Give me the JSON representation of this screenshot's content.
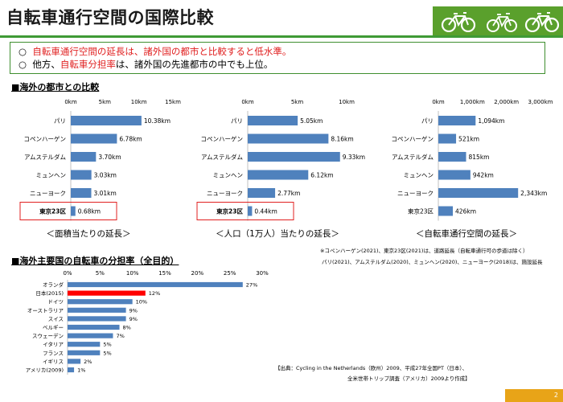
{
  "header": {
    "title": "自転車通行空間の国際比較",
    "page_number": "2"
  },
  "summary": {
    "line1": {
      "bullet": "○",
      "text": "自転車通行空間の延長は、諸外国の都市と比較すると低水準。"
    },
    "line2": {
      "bullet": "○",
      "prefix": "他方、",
      "highlight": "自転車分担率",
      "suffix": "は、諸外国の先進都市の中でも上位。"
    }
  },
  "section1": {
    "heading": "■海外の都市との比較"
  },
  "section2": {
    "heading": "■海外主要国の自転車の分担率（全目的）"
  },
  "chart_data": [
    {
      "type": "bar",
      "orientation": "horizontal",
      "caption": "＜面積当たりの延長＞",
      "categories": [
        "パリ",
        "コペンハーゲン",
        "アムステルダム",
        "ミュンヘン",
        "ニューヨーク",
        "東京23区"
      ],
      "values": [
        10.38,
        6.78,
        3.7,
        3.03,
        3.01,
        0.68
      ],
      "labels": [
        "10.38km",
        "6.78km",
        "3.70km",
        "3.03km",
        "3.01km",
        "0.68km"
      ],
      "ticks": [
        "0km",
        "5km",
        "10km",
        "15km"
      ],
      "xlim": [
        0,
        15
      ],
      "highlight_index": 5
    },
    {
      "type": "bar",
      "orientation": "horizontal",
      "caption": "＜人口（1万人）当たりの延長＞",
      "categories": [
        "パリ",
        "コペンハーゲン",
        "アムステルダム",
        "ミュンヘン",
        "ニューヨーク",
        "東京23区"
      ],
      "values": [
        5.05,
        8.16,
        9.33,
        6.12,
        2.77,
        0.44
      ],
      "labels": [
        "5.05km",
        "8.16km",
        "9.33km",
        "6.12km",
        "2.77km",
        "0.44km"
      ],
      "ticks": [
        "0km",
        "5km",
        "10km"
      ],
      "xlim": [
        0,
        10
      ],
      "highlight_index": 5
    },
    {
      "type": "bar",
      "orientation": "horizontal",
      "caption": "＜自転車通行空間の延長＞",
      "categories": [
        "パリ",
        "コペンハーゲン",
        "アムステルダム",
        "ミュンヘン",
        "ニューヨーク",
        "東京23区"
      ],
      "values": [
        1094,
        521,
        815,
        942,
        2343,
        426
      ],
      "labels": [
        "1,094km",
        "521km",
        "815km",
        "942km",
        "2,343km",
        "426km"
      ],
      "ticks": [
        "0km",
        "1,000km",
        "2,000km",
        "3,000km"
      ],
      "xlim": [
        0,
        3000
      ],
      "highlight_index": -1
    },
    {
      "type": "bar",
      "orientation": "horizontal",
      "categories": [
        "オランダ",
        "日本(2015)",
        "ドイツ",
        "オーストラリア",
        "スイス",
        "ベルギー",
        "スウェーデン",
        "イタリア",
        "フランス",
        "イギリス",
        "アメリカ(2009)"
      ],
      "values": [
        27,
        12,
        10,
        9,
        9,
        8,
        7,
        5,
        5,
        2,
        1
      ],
      "labels": [
        "27%",
        "12%",
        "10%",
        "9%",
        "9%",
        "8%",
        "7%",
        "5%",
        "5%",
        "2%",
        "1%"
      ],
      "ticks": [
        "0%",
        "5%",
        "10%",
        "15%",
        "20%",
        "25%",
        "30%"
      ],
      "xlim": [
        0,
        30
      ],
      "highlight_index": 1
    }
  ],
  "notes": {
    "footnote1": "※コペンハーゲン(2021)、東京23区(2021)は、道路延長（自転車通行可の歩道は除く）",
    "footnote2": "パリ(2021)、アムステルダム(2020)、ミュンヘン(2020)、ニューヨーク(2018)は、施設延長",
    "source1": "【出典：Cycling in the Netherlands（欧州）2009、平成27年全国PT（日本）、",
    "source2": "全米世帯トリップ調査（アメリカ）2009より作成】"
  },
  "colors": {
    "bar": "#4f81bd",
    "highlight_bar": "#ff0000",
    "accent_green": "#5aa02c",
    "box_red": "#e02020"
  }
}
